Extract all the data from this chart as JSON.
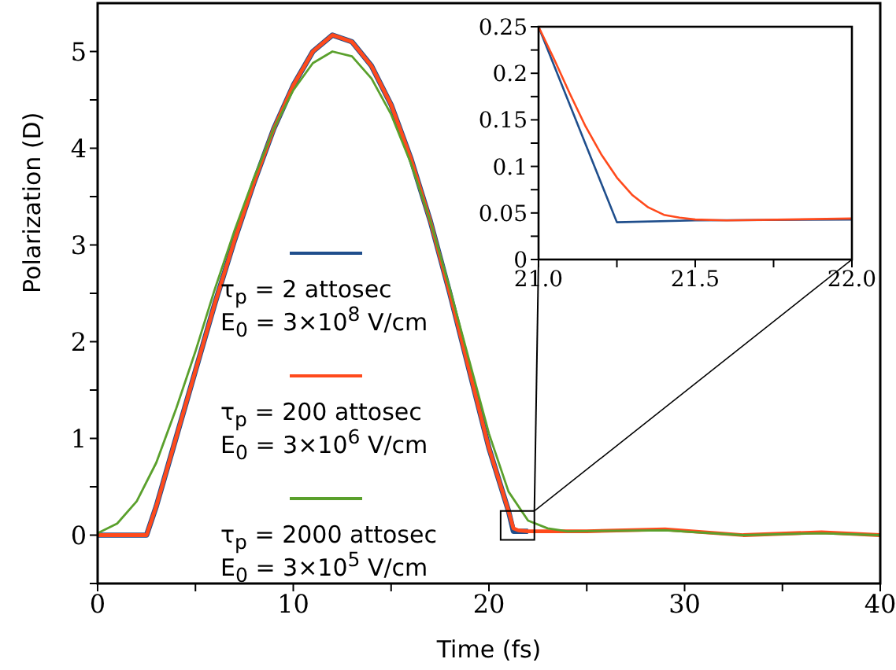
{
  "chart_data": [
    {
      "type": "line",
      "xlabel": "Time (fs)",
      "ylabel": "Polarization (D)",
      "xlim": [
        0,
        40
      ],
      "ylim": [
        -0.5,
        5.5
      ],
      "xticks": [
        0,
        {
          "value": 5,
          "label": null
        },
        10,
        {
          "value": 15,
          "label": null
        },
        20,
        {
          "value": 25,
          "label": null
        },
        30,
        {
          "value": 35,
          "label": null
        },
        40
      ],
      "yticks": [
        {
          "value": -0.5,
          "label": null
        },
        0,
        {
          "value": 0.5,
          "label": null
        },
        1,
        {
          "value": 1.5,
          "label": null
        },
        2,
        {
          "value": 2.5,
          "label": null
        },
        3,
        {
          "value": 3.5,
          "label": null
        },
        4,
        {
          "value": 4.5,
          "label": null
        },
        5
      ],
      "legend": "left",
      "grid": false,
      "marker": "none",
      "line_style": "solid",
      "series": [
        {
          "name": "τ$_{p}$ = 2 attosec\nE$_{0}$ = 3×10$^{8}$ V/cm",
          "color": "#1f4e8c",
          "x": [
            0,
            2.5,
            3,
            4,
            5,
            6,
            7,
            8,
            9,
            10,
            11,
            12,
            13,
            14,
            15,
            16,
            17,
            18,
            19,
            20,
            21,
            21.25,
            22
          ],
          "values": [
            0,
            0,
            0.3,
            1.0,
            1.7,
            2.4,
            3.05,
            3.65,
            4.2,
            4.65,
            5.0,
            5.17,
            5.1,
            4.85,
            4.45,
            3.9,
            3.25,
            2.5,
            1.7,
            0.9,
            0.25,
            0.04,
            0.04
          ]
        },
        {
          "name": "τ$_{p}$ = 200 attosec\nE$_{0}$ = 3×10$^{6}$ V/cm",
          "color": "#ff4a1c",
          "x": [
            0,
            2.5,
            3,
            4,
            5,
            6,
            7,
            8,
            9,
            10,
            11,
            12,
            13,
            14,
            15,
            16,
            17,
            18,
            19,
            20,
            21,
            21.25,
            21.5,
            22,
            25,
            29,
            33,
            37,
            40
          ],
          "values": [
            0,
            0,
            0.3,
            1.0,
            1.7,
            2.4,
            3.05,
            3.65,
            4.2,
            4.65,
            5.0,
            5.17,
            5.1,
            4.85,
            4.45,
            3.9,
            3.25,
            2.5,
            1.7,
            0.9,
            0.25,
            0.07,
            0.05,
            0.04,
            0.04,
            0.06,
            0.0,
            0.03,
            0
          ]
        },
        {
          "name": "τ$_{p}$ = 2000 attosec\nE$_{0}$ = 3×10$^{5}$ V/cm",
          "color": "#5aa02c",
          "x": [
            0,
            1,
            2,
            3,
            4,
            5,
            6,
            7,
            8,
            9,
            10,
            11,
            12,
            13,
            14,
            15,
            16,
            17,
            18,
            19,
            20,
            21,
            22,
            23,
            24,
            29,
            33,
            37,
            40
          ],
          "values": [
            0.02,
            0.12,
            0.35,
            0.75,
            1.3,
            1.9,
            2.55,
            3.15,
            3.7,
            4.2,
            4.6,
            4.88,
            5.0,
            4.95,
            4.72,
            4.35,
            3.85,
            3.25,
            2.55,
            1.8,
            1.05,
            0.45,
            0.15,
            0.07,
            0.04,
            0.05,
            0.0,
            0.02,
            0
          ]
        }
      ]
    },
    {
      "type": "line",
      "xlim": [
        21,
        22
      ],
      "ylim": [
        0,
        0.25
      ],
      "xticks": [
        {
          "value": 21,
          "label": "21.0"
        },
        {
          "value": 21.25,
          "label": null
        },
        {
          "value": 21.5,
          "label": "21.5"
        },
        {
          "value": 21.75,
          "label": null
        },
        {
          "value": 22,
          "label": "22.0"
        }
      ],
      "yticks": [
        0,
        {
          "value": 0.025,
          "label": null
        },
        0.05,
        {
          "value": 0.075,
          "label": null
        },
        0.1,
        {
          "value": 0.125,
          "label": null
        },
        0.15,
        {
          "value": 0.175,
          "label": null
        },
        0.2,
        {
          "value": 0.225,
          "label": null
        },
        0.25
      ],
      "grid": false,
      "marker": "none",
      "line_style": "solid",
      "series": [
        {
          "color": "#1f4e8c",
          "x": [
            21,
            21.25,
            21.5,
            22
          ],
          "values": [
            0.25,
            0.04,
            0.042,
            0.043
          ]
        },
        {
          "color": "#ff4a1c",
          "x": [
            21,
            21.05,
            21.1,
            21.15,
            21.2,
            21.25,
            21.3,
            21.35,
            21.4,
            21.45,
            21.5,
            21.6,
            21.8,
            22
          ],
          "values": [
            0.25,
            0.215,
            0.178,
            0.143,
            0.113,
            0.088,
            0.069,
            0.056,
            0.048,
            0.045,
            0.043,
            0.042,
            0.043,
            0.044
          ]
        }
      ]
    }
  ]
}
